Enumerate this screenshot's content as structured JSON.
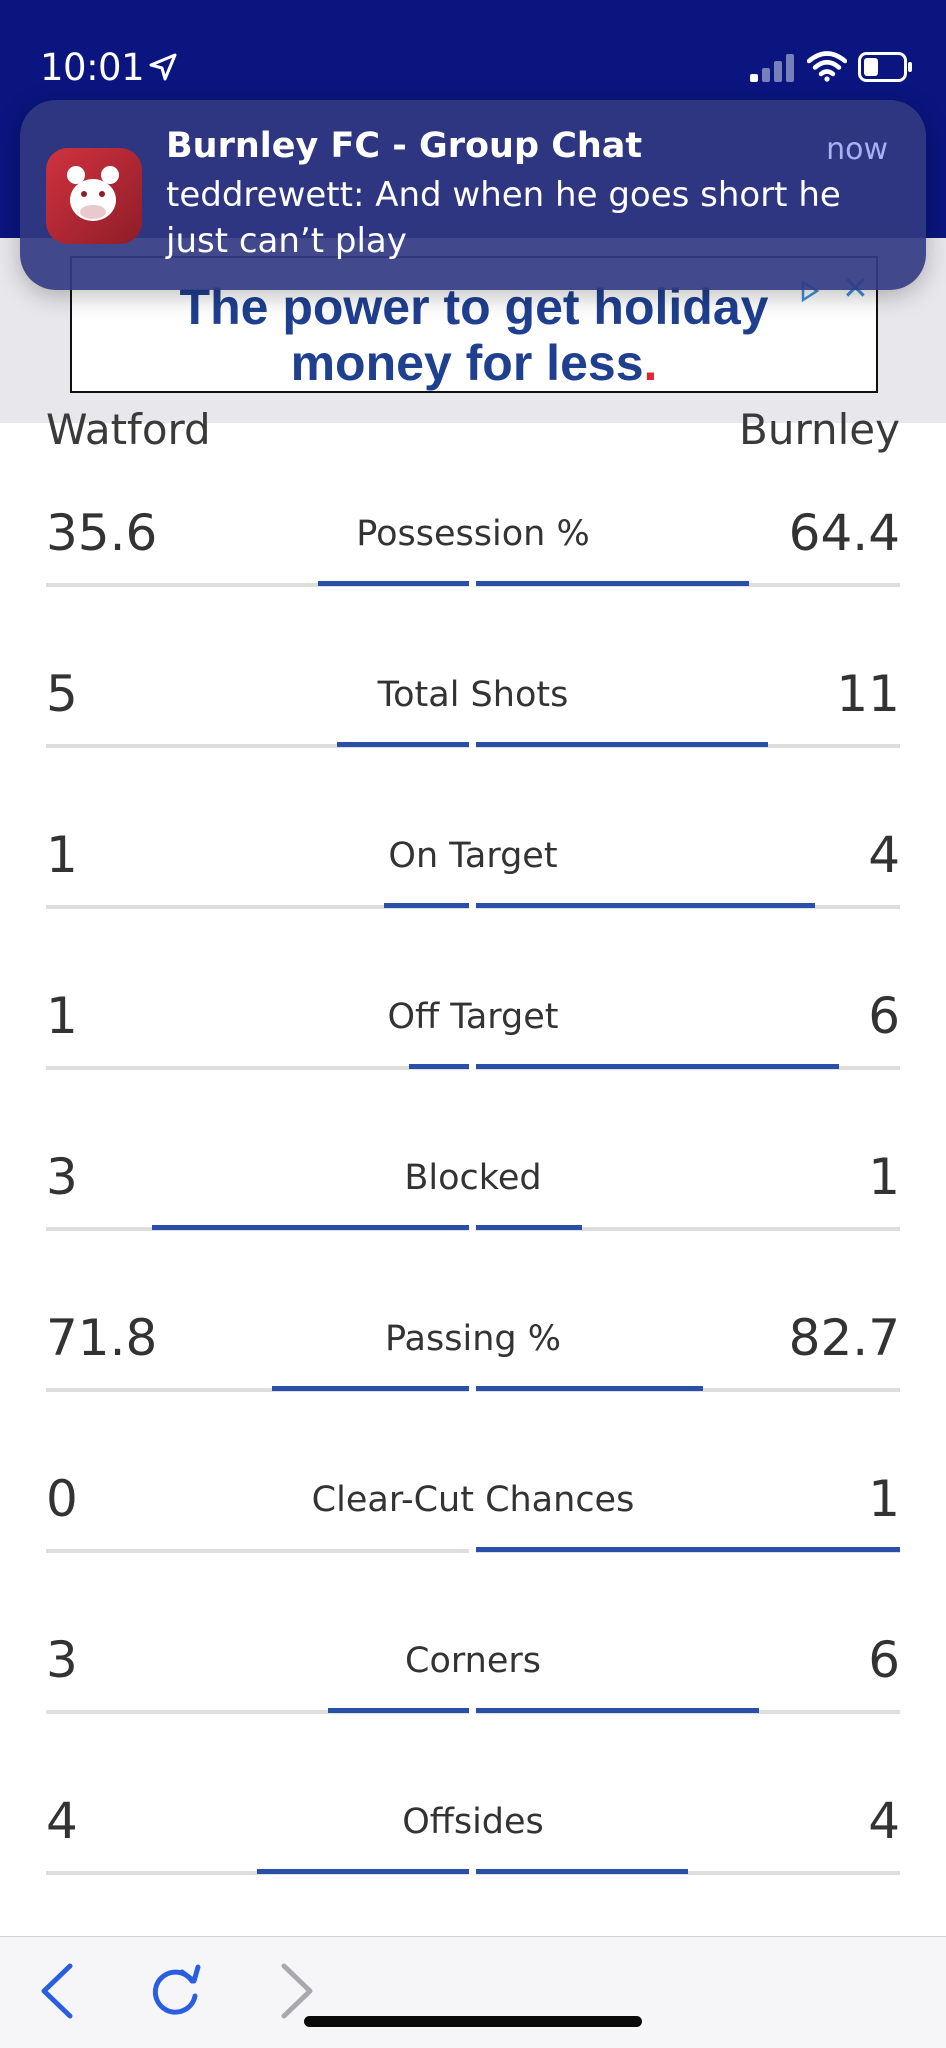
{
  "status_bar": {
    "time": "10:01"
  },
  "notification": {
    "app_title": "Burnley FC - Group Chat",
    "time": "now",
    "message": "teddrewett: And when he goes short he just can’t play"
  },
  "ad": {
    "line1": "The power to get holiday",
    "line2": "money for less",
    "line2_dot": "."
  },
  "teams": {
    "home": "Watford",
    "away": "Burnley"
  },
  "stats": [
    {
      "label": "Possession %",
      "home": "35.6",
      "away": "64.4",
      "home_share": 0.356,
      "away_share": 0.644
    },
    {
      "label": "Total Shots",
      "home": "5",
      "away": "11",
      "home_share": 0.3125,
      "away_share": 0.6875
    },
    {
      "label": "On Target",
      "home": "1",
      "away": "4",
      "home_share": 0.2,
      "away_share": 0.8
    },
    {
      "label": "Off Target",
      "home": "1",
      "away": "6",
      "home_share": 0.143,
      "away_share": 0.857
    },
    {
      "label": "Blocked",
      "home": "3",
      "away": "1",
      "home_share": 0.75,
      "away_share": 0.25
    },
    {
      "label": "Passing %",
      "home": "71.8",
      "away": "82.7",
      "home_share": 0.465,
      "away_share": 0.535
    },
    {
      "label": "Clear-Cut Chances",
      "home": "0",
      "away": "1",
      "home_share": 0.0,
      "away_share": 1.0
    },
    {
      "label": "Corners",
      "home": "3",
      "away": "6",
      "home_share": 0.333,
      "away_share": 0.667
    },
    {
      "label": "Offsides",
      "home": "4",
      "away": "4",
      "home_share": 0.5,
      "away_share": 0.5
    }
  ],
  "toolbar": {
    "back_icon": "chevron-left-icon",
    "reload_icon": "reload-icon",
    "forward_icon": "chevron-right-icon"
  },
  "colors": {
    "header_navy": "#0a157f",
    "bar_blue": "#2a4fa8",
    "track_grey": "#dedede",
    "notification_bg": "#323a82"
  }
}
